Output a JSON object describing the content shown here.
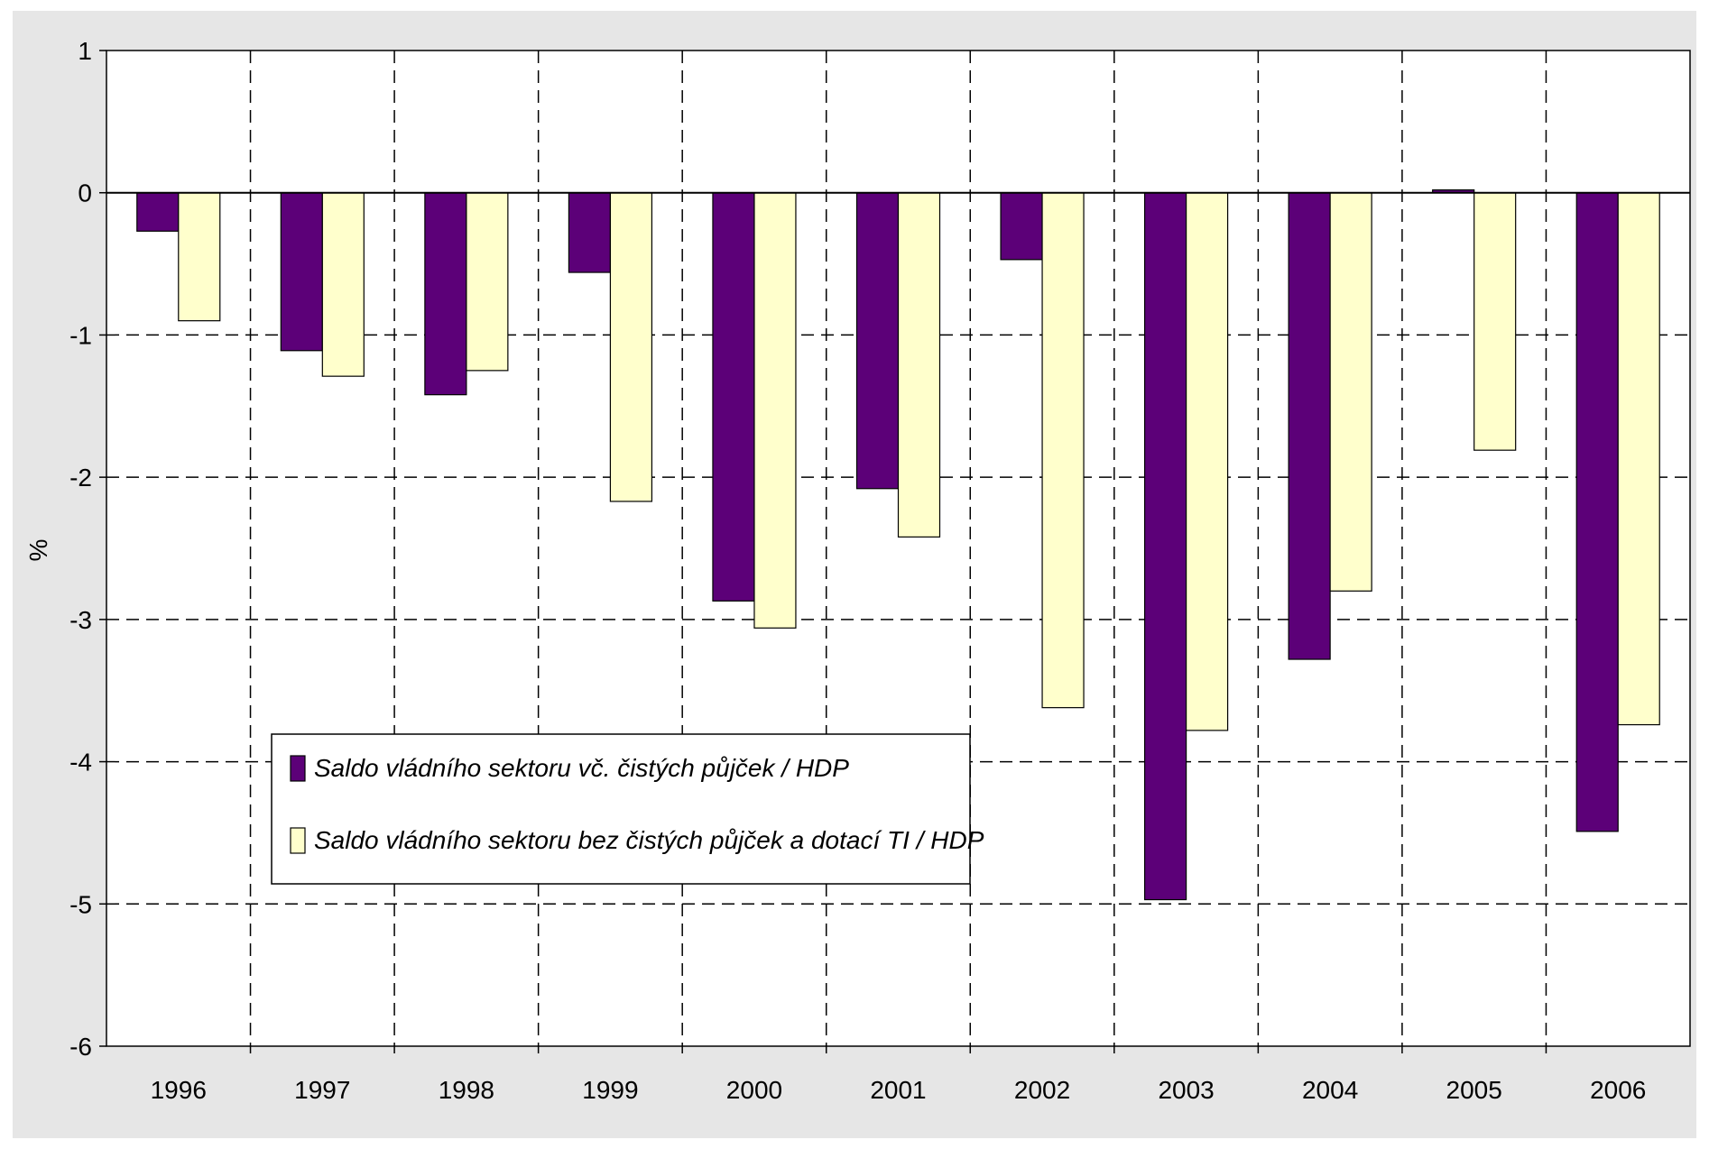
{
  "chart_data": {
    "type": "bar",
    "title": "",
    "xlabel": "",
    "ylabel": "%",
    "ylim": [
      -6,
      1
    ],
    "yticks": [
      1,
      0,
      -1,
      -2,
      -3,
      -4,
      -5,
      -6
    ],
    "grid": true,
    "legend_position": "lower-left",
    "categories": [
      "1996",
      "1997",
      "1998",
      "1999",
      "2000",
      "2001",
      "2002",
      "2003",
      "2004",
      "2005",
      "2006"
    ],
    "series": [
      {
        "name": "Saldo vládního sektoru vč. čistých půjček / HDP",
        "color": "#5c0078",
        "values": [
          -0.27,
          -1.11,
          -1.42,
          -0.56,
          -2.87,
          -2.08,
          -0.47,
          -4.97,
          -3.28,
          0.02,
          -4.49
        ]
      },
      {
        "name": "Saldo vládního sektoru bez čistých půjček a dotací TI / HDP",
        "color": "#ffffcc",
        "values": [
          -0.9,
          -1.29,
          -1.25,
          -2.17,
          -3.06,
          -2.42,
          -3.62,
          -3.78,
          -2.8,
          -1.81,
          -3.74
        ]
      }
    ]
  }
}
